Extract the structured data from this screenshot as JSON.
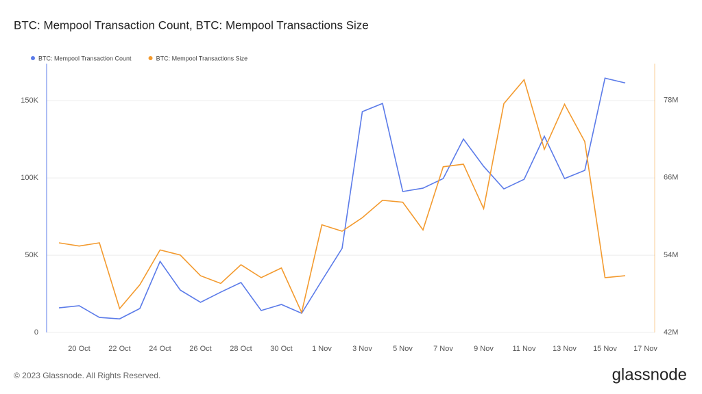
{
  "chart_data": {
    "type": "line",
    "title": "BTC: Mempool Transaction Count, BTC: Mempool Transactions Size",
    "categories": [
      null,
      "20 Oct",
      null,
      "22 Oct",
      null,
      "24 Oct",
      null,
      "26 Oct",
      null,
      "28 Oct",
      null,
      "30 Oct",
      null,
      "1 Nov",
      null,
      "3 Nov",
      null,
      "5 Nov",
      null,
      "7 Nov",
      null,
      "9 Nov",
      null,
      "11 Nov",
      null,
      "13 Nov",
      null,
      "15 Nov",
      null,
      "17 Nov"
    ],
    "series": [
      {
        "name": "BTC: Mempool Transaction Count",
        "color": "#5b7be9",
        "axis": "y",
        "values": [
          15900,
          17300,
          9700,
          8800,
          15500,
          46000,
          27400,
          19500,
          26100,
          32300,
          14200,
          18100,
          12400,
          33600,
          54400,
          142900,
          148200,
          91200,
          93400,
          99600,
          125200,
          107500,
          92900,
          99100,
          127000,
          99600,
          104900,
          164600,
          161500,
          null
        ]
      },
      {
        "name": "BTC: Mempool Transactions Size",
        "color": "#f39a2e",
        "axis": "y2",
        "values": [
          55900000,
          55400000,
          55900000,
          45700000,
          49400000,
          54800000,
          54000000,
          50800000,
          49600000,
          52500000,
          50500000,
          52000000,
          45100000,
          58700000,
          57700000,
          59800000,
          62500000,
          62200000,
          57900000,
          67700000,
          68100000,
          61200000,
          77500000,
          81200000,
          70400000,
          77400000,
          71600000,
          50500000,
          50800000,
          null
        ]
      }
    ],
    "ylim": [
      0,
      174000
    ],
    "yticks": [
      0,
      {
        "value": 50000,
        "label": "50K"
      },
      {
        "value": 100000,
        "label": "100K"
      },
      {
        "value": 150000,
        "label": "150K"
      }
    ],
    "y2lim": [
      42000000,
      83700000
    ],
    "y2ticks": [
      {
        "value": 42000000,
        "label": "42M"
      },
      {
        "value": 54000000,
        "label": "54M"
      },
      {
        "value": 66000000,
        "label": "66M"
      },
      {
        "value": 78000000,
        "label": "78M"
      }
    ],
    "grid": true,
    "legend": "top-left"
  },
  "footer": {
    "copyright": "© 2023 Glassnode. All Rights Reserved.",
    "logo": "glassnode"
  }
}
